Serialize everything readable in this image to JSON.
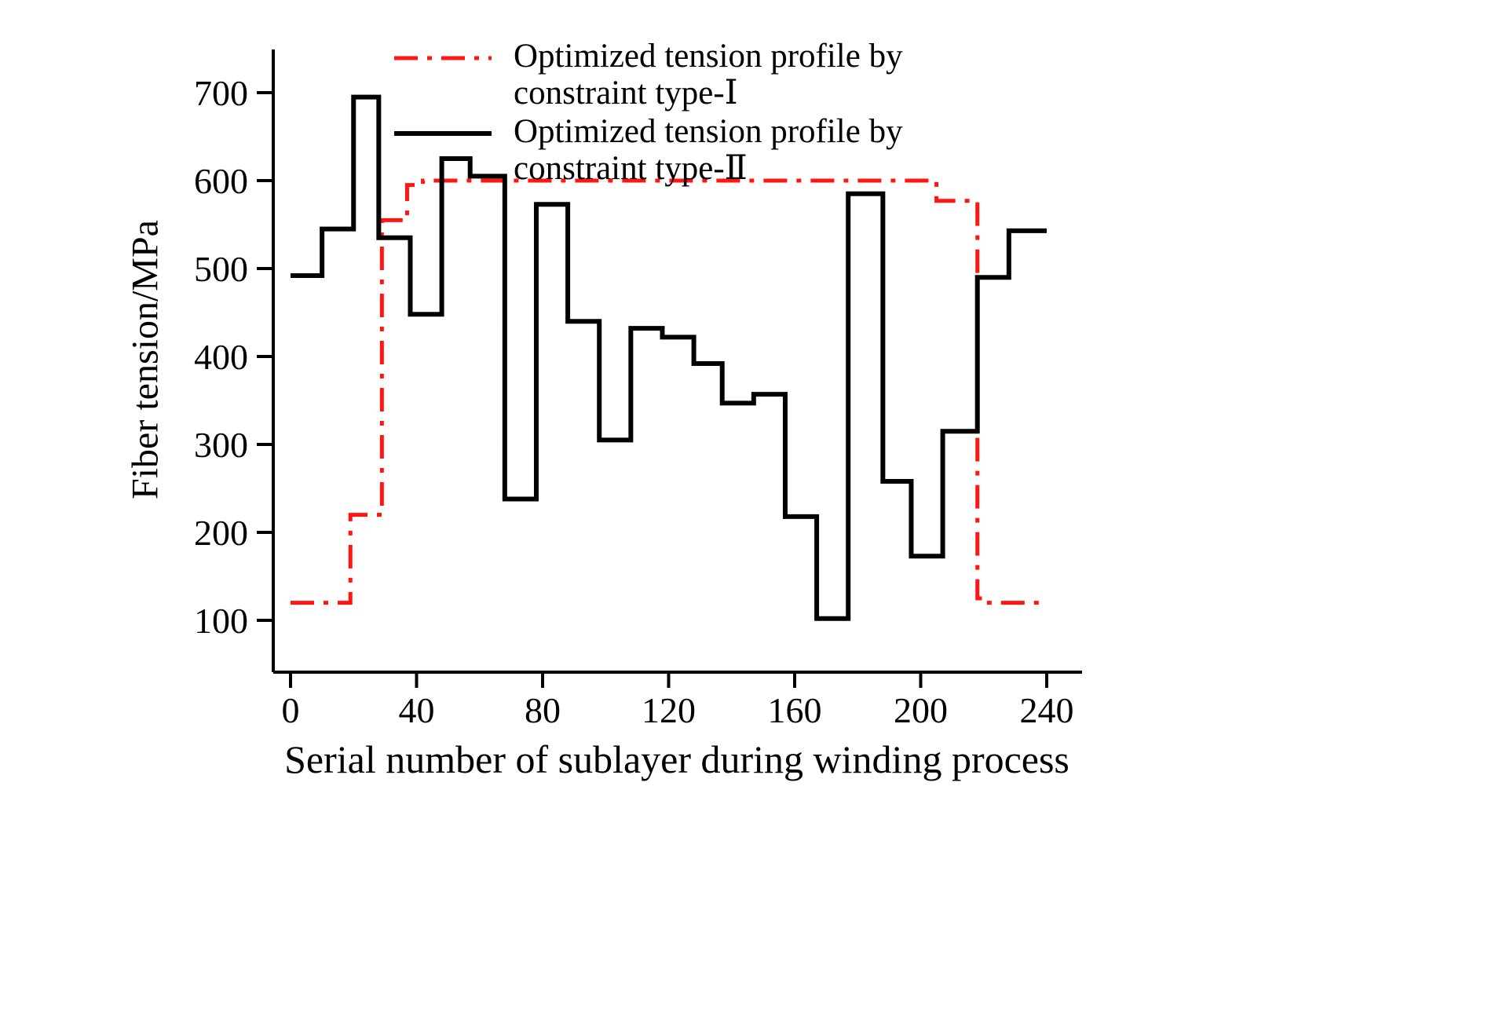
{
  "chart_data": {
    "type": "line",
    "subtype": "step",
    "title": "",
    "xlabel": "Serial number of sublayer during winding process",
    "ylabel": "Fiber tension/MPa",
    "x_ticks": [
      0,
      40,
      80,
      120,
      160,
      200,
      240
    ],
    "y_ticks": [
      100,
      200,
      300,
      400,
      500,
      600,
      700
    ],
    "xlim": [
      0,
      240
    ],
    "ylim": [
      100,
      700
    ],
    "grid": false,
    "legend_position": "top-left-inside",
    "series": [
      {
        "name": "Optimized tension profile by constraint type-Ⅰ",
        "label_line1": "Optimized tension profile by",
        "label_line2": "constraint type-Ⅰ",
        "color": "#ff1612",
        "style": "dash-dot",
        "points": [
          [
            0,
            120
          ],
          [
            19,
            120
          ],
          [
            19,
            220
          ],
          [
            29,
            220
          ],
          [
            29,
            555
          ],
          [
            37,
            555
          ],
          [
            37,
            595
          ],
          [
            42,
            595
          ],
          [
            42,
            600
          ],
          [
            205,
            600
          ],
          [
            205,
            577
          ],
          [
            218,
            577
          ],
          [
            218,
            125
          ],
          [
            221,
            125
          ],
          [
            221,
            120
          ],
          [
            240,
            120
          ]
        ]
      },
      {
        "name": "Optimized tension profile by constraint type-Ⅱ",
        "label_line1": "Optimized tension profile by",
        "label_line2": "constraint type-Ⅱ",
        "color": "#000000",
        "style": "solid",
        "points": [
          [
            0,
            492
          ],
          [
            10,
            492
          ],
          [
            10,
            545
          ],
          [
            20,
            545
          ],
          [
            20,
            695
          ],
          [
            28,
            695
          ],
          [
            28,
            535
          ],
          [
            38,
            535
          ],
          [
            38,
            448
          ],
          [
            48,
            448
          ],
          [
            48,
            625
          ],
          [
            57,
            625
          ],
          [
            57,
            605
          ],
          [
            68,
            605
          ],
          [
            68,
            238
          ],
          [
            78,
            238
          ],
          [
            78,
            573
          ],
          [
            88,
            573
          ],
          [
            88,
            440
          ],
          [
            98,
            440
          ],
          [
            98,
            305
          ],
          [
            108,
            305
          ],
          [
            108,
            432
          ],
          [
            118,
            432
          ],
          [
            118,
            422
          ],
          [
            128,
            422
          ],
          [
            128,
            392
          ],
          [
            137,
            392
          ],
          [
            137,
            347
          ],
          [
            147,
            347
          ],
          [
            147,
            357
          ],
          [
            157,
            357
          ],
          [
            157,
            218
          ],
          [
            167,
            218
          ],
          [
            167,
            102
          ],
          [
            177,
            102
          ],
          [
            177,
            585
          ],
          [
            188,
            585
          ],
          [
            188,
            258
          ],
          [
            197,
            258
          ],
          [
            197,
            173
          ],
          [
            207,
            173
          ],
          [
            207,
            315
          ],
          [
            218,
            315
          ],
          [
            218,
            490
          ],
          [
            228,
            490
          ],
          [
            228,
            543
          ],
          [
            240,
            543
          ]
        ]
      }
    ]
  }
}
